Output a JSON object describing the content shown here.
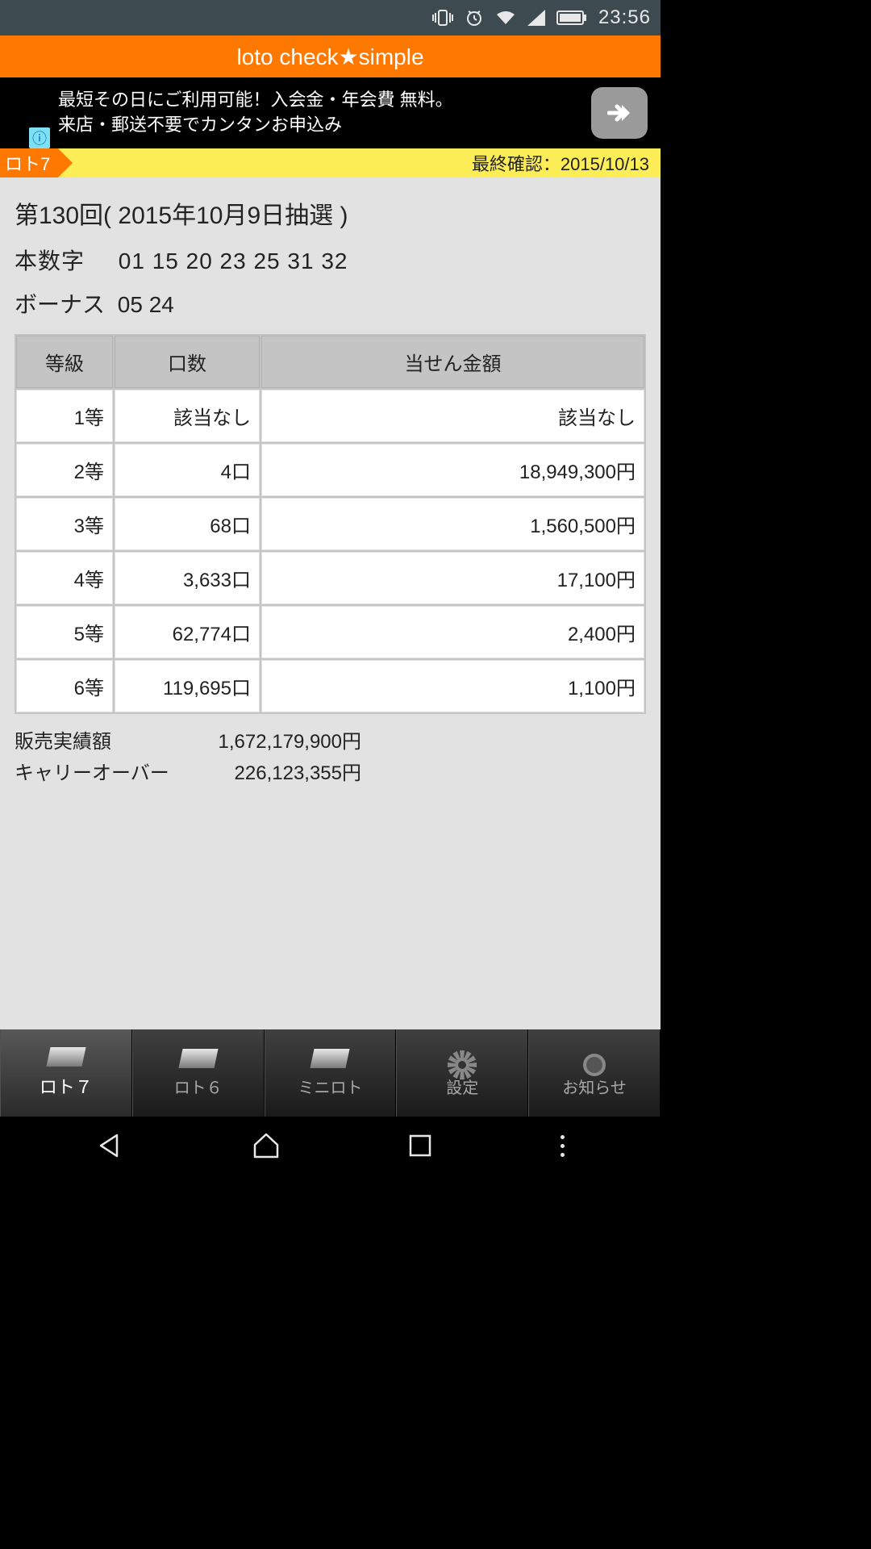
{
  "status_bar": {
    "time": "23:56"
  },
  "app_header": {
    "title": "loto check★simple"
  },
  "ad": {
    "line1": "最短その日にご利用可能！入会金・年会費 無料。",
    "line2": "来店・郵送不要でカンタンお申込み",
    "info": "ⓘ"
  },
  "confirm_bar": {
    "tag": "ロト7",
    "text": "最終確認：2015/10/13"
  },
  "draw": {
    "title": "第130回( 2015年10月9日抽選 )",
    "main_label": "本数字",
    "main_numbers": "01  15  20  23  25  31  32",
    "bonus_label": "ボーナス",
    "bonus_numbers": "05  24"
  },
  "table": {
    "headers": {
      "grade": "等級",
      "count": "口数",
      "amount": "当せん金額"
    },
    "rows": [
      {
        "grade": "1等",
        "count": "該当なし",
        "amount": "該当なし"
      },
      {
        "grade": "2等",
        "count": "4口",
        "amount": "18,949,300円"
      },
      {
        "grade": "3等",
        "count": "68口",
        "amount": "1,560,500円"
      },
      {
        "grade": "4等",
        "count": "3,633口",
        "amount": "17,100円"
      },
      {
        "grade": "5等",
        "count": "62,774口",
        "amount": "2,400円"
      },
      {
        "grade": "6等",
        "count": "119,695口",
        "amount": "1,100円"
      }
    ]
  },
  "totals": {
    "sales_label": "販売実績額",
    "sales_value": "1,672,179,900円",
    "carry_label": "キャリーオーバー",
    "carry_value": "226,123,355円"
  },
  "tabs": {
    "loto7": "ロト７",
    "loto6": "ロト６",
    "miniloto": "ミニロト",
    "settings": "設定",
    "news": "お知らせ"
  }
}
